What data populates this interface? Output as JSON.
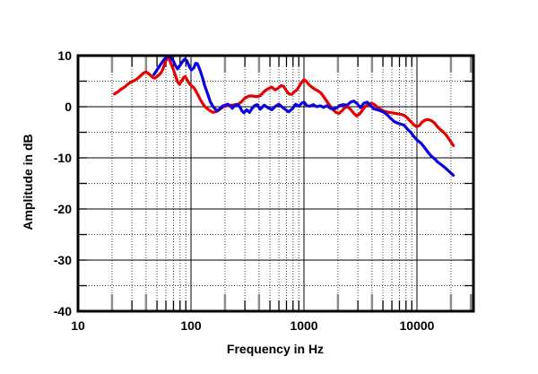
{
  "chart_data": {
    "type": "line",
    "title": "",
    "xlabel": "Frequency in Hz",
    "ylabel": "Amplitude in dB",
    "x_scale": "log",
    "xlim": [
      10,
      31623
    ],
    "ylim": [
      -40,
      10
    ],
    "x_tick_values": [
      10,
      100,
      1000,
      10000
    ],
    "x_tick_labels": [
      "10",
      "100",
      "1000",
      "10000"
    ],
    "y_tick_values": [
      10,
      0,
      -10,
      -20,
      -30,
      -40
    ],
    "y_tick_labels": [
      "10",
      "0",
      "-10",
      "-20",
      "-30",
      "-40"
    ],
    "y_major_step": 10,
    "y_minor_step": 5,
    "grid": "major solid, minor dotted, log decades",
    "legend": "none",
    "colors": {
      "frame": "#000000",
      "major_grid": "#000000",
      "minor_grid": "#3a3a3a",
      "long_tick": "#8c8c8c",
      "short_tick": "#000000",
      "red_trace": "#e60000",
      "blue_trace": "#0b00dd"
    },
    "series": [
      {
        "name": "red-trace",
        "color": "#e60000",
        "points": [
          [
            21,
            2.5
          ],
          [
            22.5,
            2.9
          ],
          [
            24,
            3.4
          ],
          [
            26,
            3.9
          ],
          [
            28,
            4.5
          ],
          [
            30,
            4.9
          ],
          [
            32,
            5.2
          ],
          [
            34,
            5.6
          ],
          [
            36,
            6.1
          ],
          [
            38,
            6.6
          ],
          [
            40,
            6.8
          ],
          [
            42,
            6.5
          ],
          [
            44,
            6.1
          ],
          [
            46,
            5.7
          ],
          [
            48,
            5.6
          ],
          [
            50,
            5.9
          ],
          [
            52,
            6.2
          ],
          [
            54,
            6.6
          ],
          [
            56,
            7.2
          ],
          [
            58,
            8.1
          ],
          [
            60,
            9.0
          ],
          [
            62,
            9.5
          ],
          [
            64,
            9.3
          ],
          [
            66,
            8.6
          ],
          [
            68,
            7.9
          ],
          [
            70,
            7.2
          ],
          [
            73,
            6.0
          ],
          [
            76,
            4.9
          ],
          [
            79,
            4.4
          ],
          [
            82,
            4.9
          ],
          [
            86,
            5.7
          ],
          [
            89,
            5.9
          ],
          [
            93,
            5.2
          ],
          [
            97,
            4.5
          ],
          [
            101,
            4.1
          ],
          [
            106,
            3.7
          ],
          [
            111,
            3.0
          ],
          [
            116,
            2.2
          ],
          [
            121,
            1.4
          ],
          [
            127,
            0.6
          ],
          [
            133,
            0.0
          ],
          [
            140,
            -0.4
          ],
          [
            148,
            -0.8
          ],
          [
            156,
            -1.1
          ],
          [
            165,
            -1.0
          ],
          [
            175,
            -0.7
          ],
          [
            185,
            -0.3
          ],
          [
            196,
            0.0
          ],
          [
            208,
            0.2
          ],
          [
            220,
            0.3
          ],
          [
            233,
            0.3
          ],
          [
            247,
            0.4
          ],
          [
            262,
            0.5
          ],
          [
            277,
            0.9
          ],
          [
            294,
            1.5
          ],
          [
            311,
            1.9
          ],
          [
            330,
            2.1
          ],
          [
            350,
            2.1
          ],
          [
            370,
            2.0
          ],
          [
            390,
            2.0
          ],
          [
            412,
            2.2
          ],
          [
            437,
            2.8
          ],
          [
            463,
            3.3
          ],
          [
            490,
            3.6
          ],
          [
            520,
            3.8
          ],
          [
            555,
            3.3
          ],
          [
            590,
            3.6
          ],
          [
            625,
            4.1
          ],
          [
            660,
            4.0
          ],
          [
            700,
            3.1
          ],
          [
            740,
            2.5
          ],
          [
            780,
            2.4
          ],
          [
            820,
            2.9
          ],
          [
            865,
            3.3
          ],
          [
            915,
            4.1
          ],
          [
            960,
            4.9
          ],
          [
            1000,
            5.3
          ],
          [
            1045,
            5.0
          ],
          [
            1110,
            4.3
          ],
          [
            1180,
            3.8
          ],
          [
            1250,
            3.4
          ],
          [
            1330,
            3.1
          ],
          [
            1410,
            2.7
          ],
          [
            1500,
            1.9
          ],
          [
            1600,
            1.0
          ],
          [
            1700,
            0.2
          ],
          [
            1810,
            -0.6
          ],
          [
            1920,
            -1.1
          ],
          [
            2040,
            -1.3
          ],
          [
            2170,
            -0.8
          ],
          [
            2300,
            -0.2
          ],
          [
            2440,
            0.0
          ],
          [
            2600,
            -0.6
          ],
          [
            2760,
            -1.3
          ],
          [
            2930,
            -1.8
          ],
          [
            3110,
            -1.4
          ],
          [
            3310,
            -0.6
          ],
          [
            3510,
            0.1
          ],
          [
            3730,
            0.5
          ],
          [
            3970,
            0.7
          ],
          [
            4210,
            0.4
          ],
          [
            4480,
            -0.1
          ],
          [
            4760,
            -0.5
          ],
          [
            5050,
            -0.8
          ],
          [
            5370,
            -1.0
          ],
          [
            5710,
            -1.1
          ],
          [
            6060,
            -1.2
          ],
          [
            6440,
            -1.3
          ],
          [
            6840,
            -1.4
          ],
          [
            7270,
            -1.5
          ],
          [
            7730,
            -1.7
          ],
          [
            8210,
            -2.2
          ],
          [
            8720,
            -2.8
          ],
          [
            9270,
            -3.4
          ],
          [
            9850,
            -3.9
          ],
          [
            10460,
            -3.7
          ],
          [
            11120,
            -3.0
          ],
          [
            11810,
            -2.6
          ],
          [
            12550,
            -2.5
          ],
          [
            13340,
            -2.7
          ],
          [
            14170,
            -3.1
          ],
          [
            15060,
            -3.8
          ],
          [
            16000,
            -4.4
          ],
          [
            17000,
            -4.9
          ],
          [
            18070,
            -5.5
          ],
          [
            19200,
            -6.3
          ],
          [
            20400,
            -7.2
          ],
          [
            21000,
            -7.6
          ]
        ]
      },
      {
        "name": "blue-trace",
        "color": "#0b00dd",
        "points": [
          [
            47,
            6.3
          ],
          [
            50,
            7.2
          ],
          [
            54,
            8.3
          ],
          [
            58,
            9.3
          ],
          [
            62,
            9.8
          ],
          [
            66,
            9.7
          ],
          [
            70,
            8.9
          ],
          [
            73,
            8.0
          ],
          [
            76,
            7.4
          ],
          [
            80,
            8.1
          ],
          [
            84,
            8.8
          ],
          [
            88,
            9.3
          ],
          [
            92,
            9.0
          ],
          [
            97,
            7.8
          ],
          [
            101,
            7.2
          ],
          [
            106,
            7.6
          ],
          [
            110,
            8.5
          ],
          [
            114,
            8.4
          ],
          [
            120,
            7.2
          ],
          [
            126,
            5.8
          ],
          [
            132,
            4.2
          ],
          [
            140,
            2.6
          ],
          [
            148,
            1.0
          ],
          [
            155,
            0.2
          ],
          [
            163,
            -0.4
          ],
          [
            172,
            -0.8
          ],
          [
            180,
            -0.4
          ],
          [
            190,
            0.1
          ],
          [
            200,
            0.3
          ],
          [
            212,
            0.5
          ],
          [
            222,
            0.2
          ],
          [
            232,
            -0.3
          ],
          [
            242,
            0.2
          ],
          [
            252,
            0.4
          ],
          [
            262,
            0.3
          ],
          [
            272,
            -0.1
          ],
          [
            282,
            -0.8
          ],
          [
            295,
            -1.2
          ],
          [
            310,
            -0.6
          ],
          [
            330,
            -1.1
          ],
          [
            345,
            -0.4
          ],
          [
            365,
            0.2
          ],
          [
            385,
            0.4
          ],
          [
            410,
            -0.5
          ],
          [
            445,
            0.3
          ],
          [
            480,
            -0.2
          ],
          [
            520,
            -0.6
          ],
          [
            560,
            0.1
          ],
          [
            600,
            0.5
          ],
          [
            645,
            -0.1
          ],
          [
            690,
            -0.6
          ],
          [
            730,
            -1.0
          ],
          [
            790,
            -0.4
          ],
          [
            845,
            0.5
          ],
          [
            905,
            0.1
          ],
          [
            955,
            0.7
          ],
          [
            1000,
            0.9
          ],
          [
            1060,
            0.2
          ],
          [
            1130,
            0.1
          ],
          [
            1210,
            0.4
          ],
          [
            1300,
            0.0
          ],
          [
            1390,
            0.2
          ],
          [
            1490,
            -0.1
          ],
          [
            1600,
            0.2
          ],
          [
            1710,
            -0.3
          ],
          [
            1830,
            -0.5
          ],
          [
            1960,
            -0.2
          ],
          [
            2100,
            0.3
          ],
          [
            2250,
            0.4
          ],
          [
            2410,
            0.3
          ],
          [
            2580,
            0.9
          ],
          [
            2760,
            1.1
          ],
          [
            2960,
            0.6
          ],
          [
            3170,
            -0.2
          ],
          [
            3390,
            0.7
          ],
          [
            3630,
            0.9
          ],
          [
            3890,
            0.2
          ],
          [
            4160,
            -0.4
          ],
          [
            4460,
            -0.6
          ],
          [
            4770,
            -0.8
          ],
          [
            5110,
            -1.1
          ],
          [
            5470,
            -1.6
          ],
          [
            5860,
            -2.3
          ],
          [
            6270,
            -2.9
          ],
          [
            6710,
            -3.2
          ],
          [
            7190,
            -3.4
          ],
          [
            7700,
            -3.6
          ],
          [
            8240,
            -4.4
          ],
          [
            8820,
            -5.0
          ],
          [
            9450,
            -5.9
          ],
          [
            10120,
            -6.6
          ],
          [
            10830,
            -7.1
          ],
          [
            11600,
            -7.9
          ],
          [
            12420,
            -8.8
          ],
          [
            13290,
            -9.6
          ],
          [
            14230,
            -10.1
          ],
          [
            15240,
            -10.8
          ],
          [
            16310,
            -11.3
          ],
          [
            17470,
            -11.8
          ],
          [
            18700,
            -12.4
          ],
          [
            20020,
            -13.0
          ],
          [
            21000,
            -13.4
          ]
        ]
      }
    ]
  }
}
